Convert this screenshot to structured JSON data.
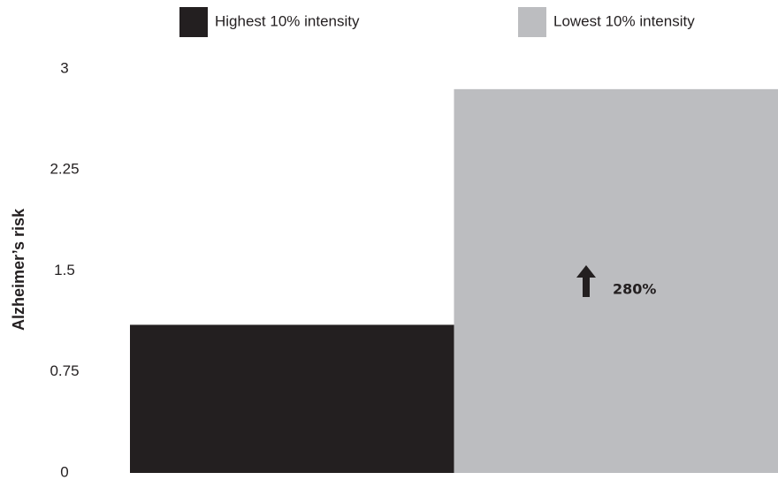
{
  "chart_data": {
    "type": "bar",
    "y_label": "Alzheimer’s risk",
    "categories": [
      null
    ],
    "series": [
      {
        "name": "Highest 10% intensity",
        "color": "#231f20",
        "values": [
          1.1
        ]
      },
      {
        "name": "Lowest 10% intensity",
        "color": "#bcbdc0",
        "values": [
          2.85
        ]
      }
    ],
    "ylim": [
      0,
      3
    ],
    "yticks": [
      0,
      0.75,
      1.5,
      2.25,
      3
    ],
    "annotation": "280%",
    "grid": false,
    "legend": "top"
  }
}
